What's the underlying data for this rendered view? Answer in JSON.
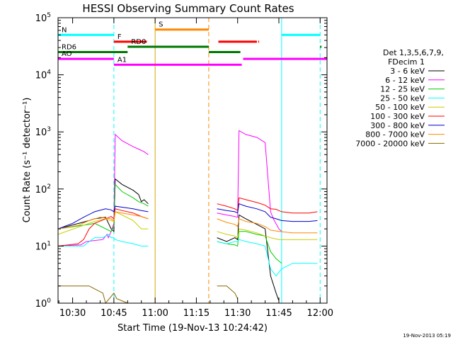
{
  "chart_data": {
    "type": "line",
    "title": "HESSI Observing Summary Count Rates",
    "xlabel": "Start Time (19-Nov-13 10:24:42)",
    "ylabel": "Count Rate (s⁻¹ detector⁻¹)",
    "yscale": "log",
    "ylim": [
      1,
      100000
    ],
    "xlim_minutes": [
      24.7,
      122.5
    ],
    "x_ticks": [
      "10:30",
      "10:45",
      "11:00",
      "11:15",
      "11:30",
      "11:45",
      "12:00"
    ],
    "x_tick_minutes": [
      30,
      45,
      60,
      75,
      90,
      105,
      120
    ],
    "y_tick_exponents": [
      0,
      1,
      2,
      3,
      4,
      5
    ],
    "legend_header": [
      "Det 1,3,5,6,7,9,",
      "FDecim 1"
    ],
    "series": [
      {
        "name": "3 - 6 keV",
        "color": "#000000",
        "points": [
          [
            24.7,
            20
          ],
          [
            36,
            28
          ],
          [
            38,
            30
          ],
          [
            42,
            32
          ],
          [
            44,
            20
          ],
          [
            45,
            18
          ],
          [
            45.5,
            150
          ],
          [
            48,
            120
          ],
          [
            52,
            95
          ],
          [
            54,
            80
          ],
          [
            55,
            60
          ],
          [
            56,
            65
          ],
          [
            57.5,
            55
          ],
          [
            null,
            null
          ],
          [
            82.5,
            14
          ],
          [
            86,
            12
          ],
          [
            89,
            14
          ],
          [
            90,
            13
          ],
          [
            90.5,
            35
          ],
          [
            93,
            30
          ],
          [
            97,
            24
          ],
          [
            100,
            20
          ],
          [
            102,
            3
          ],
          [
            104,
            1.5
          ],
          [
            105,
            1.1
          ]
        ]
      },
      {
        "name": "6 - 12 keV",
        "color": "#ff00ff",
        "points": [
          [
            24.7,
            10
          ],
          [
            33,
            10.5
          ],
          [
            35,
            12
          ],
          [
            41,
            13
          ],
          [
            42.5,
            16
          ],
          [
            43,
            14
          ],
          [
            44,
            18
          ],
          [
            45,
            25
          ],
          [
            45.5,
            900
          ],
          [
            48,
            700
          ],
          [
            52,
            550
          ],
          [
            54,
            500
          ],
          [
            56,
            450
          ],
          [
            57.5,
            400
          ],
          [
            null,
            null
          ],
          [
            82.5,
            38
          ],
          [
            86,
            35
          ],
          [
            89,
            33
          ],
          [
            90,
            32
          ],
          [
            90.5,
            1050
          ],
          [
            93,
            900
          ],
          [
            97,
            800
          ],
          [
            100,
            650
          ],
          [
            102,
            40
          ],
          [
            103,
            30
          ],
          [
            105,
            20
          ],
          [
            106,
            18
          ]
        ]
      },
      {
        "name": "12 - 25 keV",
        "color": "#00cc00",
        "points": [
          [
            24.7,
            20
          ],
          [
            36,
            24
          ],
          [
            38,
            25
          ],
          [
            44,
            18
          ],
          [
            45,
            22
          ],
          [
            45.5,
            120
          ],
          [
            48,
            90
          ],
          [
            52,
            70
          ],
          [
            54,
            60
          ],
          [
            56,
            55
          ],
          [
            57.5,
            50
          ],
          [
            null,
            null
          ],
          [
            82.5,
            12
          ],
          [
            86,
            11
          ],
          [
            89,
            10.5
          ],
          [
            90,
            10
          ],
          [
            90.5,
            18
          ],
          [
            93,
            18
          ],
          [
            97,
            16
          ],
          [
            100,
            15
          ],
          [
            102,
            8
          ],
          [
            104,
            6
          ],
          [
            106,
            5
          ]
        ]
      },
      {
        "name": "25 - 50 keV",
        "color": "#00ffff",
        "points": [
          [
            24.7,
            10
          ],
          [
            34,
            10
          ],
          [
            36,
            12
          ],
          [
            38,
            14
          ],
          [
            41,
            14
          ],
          [
            43,
            16
          ],
          [
            44,
            14
          ],
          [
            45,
            14
          ],
          [
            45.5,
            13
          ],
          [
            48,
            12
          ],
          [
            52,
            11
          ],
          [
            55,
            10
          ],
          [
            57.5,
            10
          ],
          [
            null,
            null
          ],
          [
            82.5,
            12
          ],
          [
            86,
            11
          ],
          [
            89,
            12
          ],
          [
            90,
            12
          ],
          [
            90.5,
            13
          ],
          [
            93,
            12
          ],
          [
            97,
            11
          ],
          [
            100,
            10
          ],
          [
            102,
            4
          ],
          [
            104,
            3
          ],
          [
            106,
            4
          ],
          [
            110,
            5
          ],
          [
            116,
            5
          ],
          [
            119,
            5
          ]
        ]
      },
      {
        "name": "50 - 100 keV",
        "color": "#cccc00",
        "points": [
          [
            24.7,
            16
          ],
          [
            36,
            25
          ],
          [
            38,
            27
          ],
          [
            42,
            30
          ],
          [
            44,
            28
          ],
          [
            45,
            27
          ],
          [
            45.5,
            40
          ],
          [
            48,
            35
          ],
          [
            52,
            28
          ],
          [
            55,
            20
          ],
          [
            57.5,
            20
          ],
          [
            null,
            null
          ],
          [
            82.5,
            18
          ],
          [
            86,
            16
          ],
          [
            89,
            15
          ],
          [
            90,
            14
          ],
          [
            90.5,
            20
          ],
          [
            93,
            19
          ],
          [
            97,
            17
          ],
          [
            100,
            15
          ],
          [
            102,
            14
          ],
          [
            105,
            13
          ],
          [
            110,
            13
          ],
          [
            119,
            13
          ]
        ]
      },
      {
        "name": "100 - 300 keV",
        "color": "#ff0000",
        "points": [
          [
            24.7,
            10
          ],
          [
            32,
            11
          ],
          [
            34,
            13
          ],
          [
            36,
            20
          ],
          [
            38,
            25
          ],
          [
            42,
            30
          ],
          [
            44,
            33
          ],
          [
            45,
            30
          ],
          [
            45.5,
            45
          ],
          [
            48,
            42
          ],
          [
            52,
            38
          ],
          [
            55,
            33
          ],
          [
            57.5,
            30
          ],
          [
            null,
            null
          ],
          [
            82.5,
            55
          ],
          [
            86,
            50
          ],
          [
            89,
            45
          ],
          [
            90,
            42
          ],
          [
            90.5,
            70
          ],
          [
            93,
            65
          ],
          [
            97,
            58
          ],
          [
            100,
            52
          ],
          [
            102,
            45
          ],
          [
            104,
            44
          ],
          [
            106,
            40
          ],
          [
            110,
            38
          ],
          [
            116,
            38
          ],
          [
            119,
            40
          ]
        ]
      },
      {
        "name": "300 - 800 keV",
        "color": "#0000cc",
        "points": [
          [
            24.7,
            20
          ],
          [
            30,
            25
          ],
          [
            34,
            32
          ],
          [
            38,
            40
          ],
          [
            42,
            45
          ],
          [
            44,
            43
          ],
          [
            45,
            40
          ],
          [
            45.5,
            50
          ],
          [
            48,
            48
          ],
          [
            52,
            45
          ],
          [
            55,
            42
          ],
          [
            57.5,
            40
          ],
          [
            null,
            null
          ],
          [
            82.5,
            45
          ],
          [
            86,
            42
          ],
          [
            89,
            40
          ],
          [
            90,
            38
          ],
          [
            90.5,
            55
          ],
          [
            93,
            50
          ],
          [
            97,
            45
          ],
          [
            100,
            40
          ],
          [
            102,
            32
          ],
          [
            104,
            30
          ],
          [
            106,
            28
          ],
          [
            110,
            27
          ],
          [
            116,
            27
          ],
          [
            119,
            28
          ]
        ]
      },
      {
        "name": "800 - 7000 keV",
        "color": "#ff8800",
        "points": [
          [
            24.7,
            20
          ],
          [
            32,
            23
          ],
          [
            36,
            28
          ],
          [
            40,
            32
          ],
          [
            44,
            30
          ],
          [
            45,
            28
          ],
          [
            45.5,
            40
          ],
          [
            48,
            38
          ],
          [
            52,
            35
          ],
          [
            55,
            33
          ],
          [
            57.5,
            30
          ],
          [
            null,
            null
          ],
          [
            82.5,
            30
          ],
          [
            86,
            26
          ],
          [
            89,
            24
          ],
          [
            90,
            22
          ],
          [
            90.5,
            30
          ],
          [
            93,
            27
          ],
          [
            97,
            25
          ],
          [
            100,
            22
          ],
          [
            102,
            19
          ],
          [
            105,
            18
          ],
          [
            110,
            17
          ],
          [
            119,
            17
          ]
        ]
      },
      {
        "name": "7000 - 20000 keV",
        "color": "#886600",
        "points": [
          [
            24.7,
            2
          ],
          [
            30,
            2
          ],
          [
            36,
            2
          ],
          [
            41,
            1.5
          ],
          [
            42,
            1
          ],
          [
            45,
            1.5
          ],
          [
            46,
            1.2
          ],
          [
            50,
            1
          ],
          [
            null,
            null
          ],
          [
            82.5,
            2
          ],
          [
            86,
            2
          ],
          [
            89,
            1.5
          ],
          [
            90,
            1.2
          ]
        ]
      }
    ],
    "flags": [
      {
        "label": "N",
        "color": "#00ffff",
        "y": 50000,
        "segments": [
          [
            24.7,
            45
          ],
          [
            106,
            120
          ]
        ]
      },
      {
        "label": "F",
        "color": "#ff0000",
        "y": 38000,
        "segments": [
          [
            45,
            57
          ],
          [
            83,
            97
          ],
          [
            97.5,
            97.8
          ]
        ]
      },
      {
        "label": "S",
        "color": "#ff8800",
        "y": 62000,
        "segments": [
          [
            60,
            79.5
          ]
        ]
      },
      {
        "label": "RD0",
        "color": "#007700",
        "y": 31000,
        "segments": [
          [
            50,
            79.5
          ],
          [
            120,
            120.5
          ]
        ]
      },
      {
        "label": "RD6",
        "color": "#007700",
        "y": 25000,
        "segments": [
          [
            24.7,
            50
          ],
          [
            79.5,
            91
          ]
        ]
      },
      {
        "label": "AO",
        "color": "#ff00ff",
        "y": 19000,
        "segments": [
          [
            24.7,
            45
          ],
          [
            92,
            122.5
          ]
        ]
      },
      {
        "label": "A1",
        "color": "#ff00ff",
        "y": 15000,
        "segments": [
          [
            45,
            79.5
          ],
          [
            79.5,
            91.5
          ]
        ]
      }
    ],
    "markers": [
      {
        "minute": 45,
        "color": "#00ffff",
        "style": "dashed"
      },
      {
        "minute": 60,
        "color": "#ccaa00",
        "style": "solid"
      },
      {
        "minute": 79.5,
        "color": "#ff8800",
        "style": "dashed"
      },
      {
        "minute": 106,
        "color": "#00ffff",
        "style": "solid"
      },
      {
        "minute": 120,
        "color": "#00ffff",
        "style": "dashed"
      }
    ],
    "grid": false,
    "legend_position": "right"
  },
  "footer": {
    "timestamp": "19-Nov-2013 05:19"
  }
}
